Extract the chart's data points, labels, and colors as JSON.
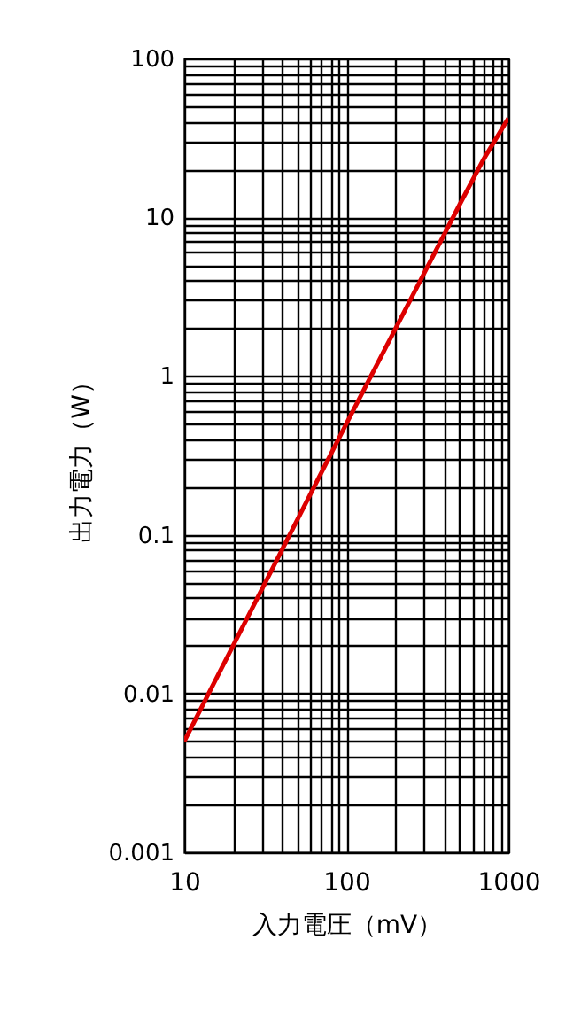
{
  "chart_data": {
    "type": "line",
    "xlabel": "入力電圧（mV）",
    "ylabel": "出力電力（W）",
    "log": "xy",
    "grid": true,
    "marker": "none",
    "line_style": "solid",
    "legend": false,
    "x": [
      10,
      100,
      500,
      700,
      1000
    ],
    "series": [
      {
        "color": "#dd0000",
        "values": [
          0.005,
          0.5,
          12,
          23,
          42
        ]
      }
    ],
    "xlim": [
      10,
      1000
    ],
    "ylim": [
      0.001,
      100
    ],
    "xticks": [
      10,
      {
        "value": 20,
        "label": null
      },
      {
        "value": 30,
        "label": null
      },
      {
        "value": 40,
        "label": null
      },
      {
        "value": 50,
        "label": null
      },
      {
        "value": 60,
        "label": null
      },
      {
        "value": 70,
        "label": null
      },
      {
        "value": 80,
        "label": null
      },
      {
        "value": 90,
        "label": null
      },
      100,
      {
        "value": 200,
        "label": null
      },
      {
        "value": 300,
        "label": null
      },
      {
        "value": 400,
        "label": null
      },
      {
        "value": 500,
        "label": null
      },
      {
        "value": 600,
        "label": null
      },
      {
        "value": 700,
        "label": null
      },
      {
        "value": 800,
        "label": null
      },
      {
        "value": 900,
        "label": null
      },
      1000
    ],
    "yticks": [
      0.001,
      {
        "value": 0.002,
        "label": null
      },
      {
        "value": 0.003,
        "label": null
      },
      {
        "value": 0.004,
        "label": null
      },
      {
        "value": 0.005,
        "label": null
      },
      {
        "value": 0.006,
        "label": null
      },
      {
        "value": 0.007,
        "label": null
      },
      {
        "value": 0.008,
        "label": null
      },
      {
        "value": 0.009,
        "label": null
      },
      0.01,
      {
        "value": 0.02,
        "label": null
      },
      {
        "value": 0.03,
        "label": null
      },
      {
        "value": 0.04,
        "label": null
      },
      {
        "value": 0.05,
        "label": null
      },
      {
        "value": 0.06,
        "label": null
      },
      {
        "value": 0.07,
        "label": null
      },
      {
        "value": 0.08,
        "label": null
      },
      {
        "value": 0.09,
        "label": null
      },
      0.1,
      {
        "value": 0.2,
        "label": null
      },
      {
        "value": 0.3,
        "label": null
      },
      {
        "value": 0.4,
        "label": null
      },
      {
        "value": 0.5,
        "label": null
      },
      {
        "value": 0.6,
        "label": null
      },
      {
        "value": 0.7,
        "label": null
      },
      {
        "value": 0.8,
        "label": null
      },
      {
        "value": 0.9,
        "label": null
      },
      1,
      {
        "value": 2,
        "label": null
      },
      {
        "value": 3,
        "label": null
      },
      {
        "value": 4,
        "label": null
      },
      {
        "value": 5,
        "label": null
      },
      {
        "value": 6,
        "label": null
      },
      {
        "value": 7,
        "label": null
      },
      {
        "value": 8,
        "label": null
      },
      {
        "value": 9,
        "label": null
      },
      10,
      {
        "value": 20,
        "label": null
      },
      {
        "value": 30,
        "label": null
      },
      {
        "value": 40,
        "label": null
      },
      {
        "value": 50,
        "label": null
      },
      {
        "value": 60,
        "label": null
      },
      {
        "value": 70,
        "label": null
      },
      {
        "value": 80,
        "label": null
      },
      {
        "value": 90,
        "label": null
      },
      100
    ]
  }
}
